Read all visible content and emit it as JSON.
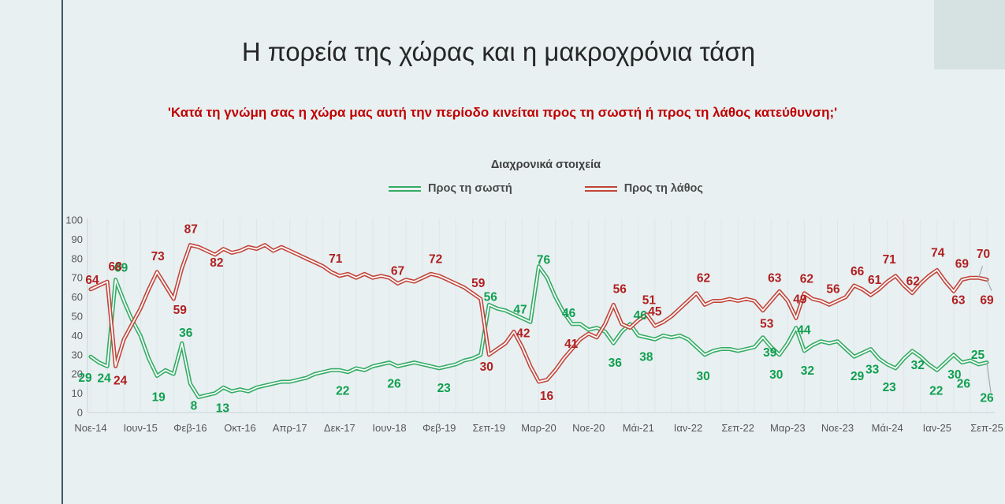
{
  "header": {
    "title": "Η πορεία της χώρας και η μακροχρόνια τάση",
    "subtitle": "'Κατά τη γνώμη σας η χώρα μας αυτή την περίοδο κινείται προς τη σωστή ή προς τη λάθος κατεύθυνση;'"
  },
  "legend": {
    "title": "Διαχρονικά στοιχεία",
    "items": [
      {
        "label": "Προς τη σωστή",
        "color": "#34ac64"
      },
      {
        "label": "Προς τη λάθος",
        "color": "#c2453a"
      }
    ]
  },
  "colors": {
    "background": "#e9f0f2",
    "corner_box": "#d6e1e2",
    "accent_line": "#3a5a60",
    "grid": "#dde7e9",
    "axis": "#c8d3d6",
    "tick_text": "#565656",
    "leader": "#a0abad",
    "green_line": "#34ac64",
    "green_label": "#0f9f4f",
    "red_line": "#c2453a",
    "red_label": "#b01f1f",
    "line_core": "#fbfdfd"
  },
  "chart_data": {
    "type": "line",
    "title": "Διαχρονικά στοιχεία",
    "x_axis": {
      "tick_labels": [
        "Νοε-14",
        "Ιουν-15",
        "Φεβ-16",
        "Οκτ-16",
        "Απρ-17",
        "Δεκ-17",
        "Ιουν-18",
        "Φεβ-19",
        "Σεπ-19",
        "Μαρ-20",
        "Νοε-20",
        "Μάι-21",
        "Ιαν-22",
        "Σεπ-22",
        "Μαρ-23",
        "Νοε-23",
        "Μάι-24",
        "Ιαν-25",
        "Σεπ-25"
      ],
      "ticks_every": 6,
      "points": 109
    },
    "y_axis": {
      "min": 0,
      "max": 100,
      "step": 10,
      "tick_labels": [
        "0",
        "10",
        "20",
        "30",
        "40",
        "50",
        "60",
        "70",
        "80",
        "90",
        "100"
      ]
    },
    "grid": "vertical-minor-every-2-points",
    "legend_position": "top",
    "series": [
      {
        "name": "Προς τη σωστή",
        "color": "#34ac64",
        "label_color": "#0f9f4f",
        "values": [
          29,
          26,
          24,
          69,
          58,
          48,
          40,
          28,
          19,
          22,
          20,
          36,
          15,
          8,
          9,
          10,
          13,
          11,
          12,
          11,
          13,
          14,
          15,
          16,
          16,
          17,
          18,
          20,
          21,
          22,
          22,
          21,
          23,
          22,
          24,
          25,
          26,
          24,
          25,
          26,
          25,
          24,
          23,
          24,
          25,
          27,
          28,
          30,
          56,
          54,
          53,
          51,
          49,
          47,
          76,
          70,
          60,
          52,
          46,
          46,
          43,
          44,
          42,
          36,
          42,
          46,
          40,
          39,
          38,
          40,
          39,
          40,
          38,
          34,
          30,
          32,
          33,
          33,
          32,
          33,
          34,
          39,
          34,
          30,
          36,
          44,
          32,
          35,
          37,
          36,
          37,
          33,
          29,
          31,
          33,
          28,
          25,
          23,
          28,
          32,
          29,
          25,
          22,
          26,
          30,
          26,
          27,
          25,
          26
        ],
        "labels": [
          {
            "i": 0,
            "dx": -7,
            "dy": 27
          },
          {
            "i": 2,
            "dx": -4,
            "dy": 15
          },
          {
            "i": 3,
            "dx": 7,
            "dy": -15
          },
          {
            "i": 8,
            "dx": 2,
            "dy": 27
          },
          {
            "i": 11,
            "dx": 5,
            "dy": -13
          },
          {
            "i": 13,
            "dx": -6,
            "dy": 11
          },
          {
            "i": 16,
            "dx": -1,
            "dy": 26
          },
          {
            "i": 30,
            "dx": 4,
            "dy": 26
          },
          {
            "i": 36,
            "dx": 6,
            "dy": 27
          },
          {
            "i": 42,
            "dx": 6,
            "dy": 25
          },
          {
            "i": 48,
            "dx": 2,
            "dy": -10
          },
          {
            "i": 53,
            "dx": -13,
            "dy": -16
          },
          {
            "i": 54,
            "dx": 6,
            "dy": -8
          },
          {
            "i": 58,
            "dx": -4,
            "dy": -14
          },
          {
            "i": 63,
            "dx": 2,
            "dy": 25
          },
          {
            "i": 65,
            "dx": 13,
            "dy": -11
          },
          {
            "i": 68,
            "dx": -11,
            "dy": 22
          },
          {
            "i": 74,
            "dx": -2,
            "dy": 27
          },
          {
            "i": 81,
            "dx": 9,
            "dy": 19
          },
          {
            "i": 83,
            "dx": -4,
            "dy": 25
          },
          {
            "i": 85,
            "dx": 10,
            "dy": 3
          },
          {
            "i": 86,
            "dx": 4,
            "dy": 25
          },
          {
            "i": 92,
            "dx": 4,
            "dy": 25
          },
          {
            "i": 94,
            "dx": 2,
            "dy": 26
          },
          {
            "i": 97,
            "dx": -8,
            "dy": 24
          },
          {
            "i": 99,
            "dx": 7,
            "dy": 18
          },
          {
            "i": 102,
            "dx": -1,
            "dy": 26
          },
          {
            "i": 104,
            "dx": 1,
            "dy": 25
          },
          {
            "i": 105,
            "dx": 2,
            "dy": 27
          },
          {
            "i": 107,
            "dx": -1,
            "dy": -12
          },
          {
            "i": 108,
            "dx": 0,
            "dy": 45,
            "lx": 5,
            "ly": 38
          }
        ]
      },
      {
        "name": "Προς τη λάθος",
        "color": "#c2453a",
        "label_color": "#b01f1f",
        "values": [
          64,
          66,
          68,
          24,
          38,
          46,
          54,
          64,
          73,
          66,
          59,
          75,
          87,
          86,
          84,
          82,
          85,
          83,
          84,
          86,
          85,
          87,
          84,
          86,
          84,
          82,
          80,
          78,
          76,
          73,
          71,
          72,
          70,
          72,
          70,
          71,
          70,
          67,
          69,
          68,
          70,
          72,
          71,
          69,
          67,
          65,
          62,
          59,
          30,
          33,
          36,
          42,
          34,
          24,
          16,
          17,
          22,
          28,
          33,
          38,
          41,
          39,
          46,
          56,
          46,
          44,
          48,
          51,
          45,
          47,
          50,
          54,
          58,
          62,
          56,
          58,
          58,
          59,
          58,
          59,
          58,
          53,
          58,
          63,
          58,
          49,
          62,
          59,
          58,
          56,
          58,
          60,
          66,
          64,
          61,
          64,
          68,
          71,
          66,
          62,
          67,
          71,
          74,
          68,
          63,
          69,
          70,
          70,
          69
        ],
        "labels": [
          {
            "i": 0,
            "dx": 2,
            "dy": -12
          },
          {
            "i": 2,
            "dx": 10,
            "dy": -19
          },
          {
            "i": 3,
            "dx": 6,
            "dy": 18
          },
          {
            "i": 8,
            "dx": 1,
            "dy": -20
          },
          {
            "i": 10,
            "dx": 8,
            "dy": 14
          },
          {
            "i": 12,
            "dx": 1,
            "dy": -20
          },
          {
            "i": 15,
            "dx": 2,
            "dy": 10
          },
          {
            "i": 30,
            "dx": -5,
            "dy": -22
          },
          {
            "i": 37,
            "dx": 0,
            "dy": -16
          },
          {
            "i": 41,
            "dx": 6,
            "dy": -19
          },
          {
            "i": 47,
            "dx": -3,
            "dy": -20
          },
          {
            "i": 48,
            "dx": -3,
            "dy": 15
          },
          {
            "i": 51,
            "dx": 12,
            "dy": 2
          },
          {
            "i": 54,
            "dx": 10,
            "dy": 18
          },
          {
            "i": 60,
            "dx": -22,
            "dy": 13
          },
          {
            "i": 63,
            "dx": 8,
            "dy": -20
          },
          {
            "i": 67,
            "dx": 3,
            "dy": -18
          },
          {
            "i": 68,
            "dx": 0,
            "dy": -18
          },
          {
            "i": 73,
            "dx": 9,
            "dy": -19
          },
          {
            "i": 81,
            "dx": 5,
            "dy": 17
          },
          {
            "i": 83,
            "dx": -6,
            "dy": -17
          },
          {
            "i": 85,
            "dx": 5,
            "dy": -24
          },
          {
            "i": 86,
            "dx": 3,
            "dy": -18
          },
          {
            "i": 89,
            "dx": 5,
            "dy": -20
          },
          {
            "i": 92,
            "dx": 4,
            "dy": -18
          },
          {
            "i": 94,
            "dx": 5,
            "dy": -19
          },
          {
            "i": 97,
            "dx": -8,
            "dy": -21
          },
          {
            "i": 99,
            "dx": 1,
            "dy": -15
          },
          {
            "i": 102,
            "dx": 1,
            "dy": -22
          },
          {
            "i": 104,
            "dx": 6,
            "dy": 11
          },
          {
            "i": 105,
            "dx": 0,
            "dy": -20
          },
          {
            "i": 107,
            "dx": 6,
            "dy": -30,
            "lx": 5,
            "ly": -15
          },
          {
            "i": 108,
            "dx": 0,
            "dy": 26,
            "lx": 6,
            "ly": 14
          }
        ]
      }
    ]
  }
}
